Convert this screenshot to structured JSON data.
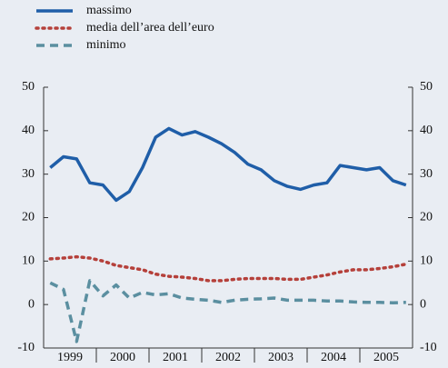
{
  "chart_data": {
    "type": "line",
    "categories": [
      "1999",
      null,
      null,
      null,
      "2000",
      null,
      null,
      null,
      "2001",
      null,
      null,
      null,
      "2002",
      null,
      null,
      null,
      "2003",
      null,
      null,
      null,
      "2004",
      null,
      null,
      null,
      "2005",
      null,
      null,
      null
    ],
    "series": [
      {
        "name": "massimo",
        "color": "#1f5ea8",
        "style": "solid",
        "values": [
          31.5,
          34,
          33.5,
          28,
          27.5,
          24,
          26,
          31.5,
          38.5,
          40.5,
          39,
          39.8,
          38.5,
          37,
          35,
          32.3,
          31,
          28.5,
          27.2,
          26.5,
          27.5,
          28,
          32,
          31.5,
          31,
          31.5,
          28.5,
          27.5
        ]
      },
      {
        "name": "media dell’area dell’euro",
        "color": "#b5403a",
        "style": "dotted",
        "values": [
          10.5,
          10.7,
          11,
          10.7,
          10,
          9,
          8.5,
          8,
          7,
          6.5,
          6.3,
          6,
          5.5,
          5.5,
          5.8,
          6,
          6,
          6,
          5.8,
          5.8,
          6.3,
          6.8,
          7.5,
          8,
          8,
          8.3,
          8.7,
          9.3
        ]
      },
      {
        "name": "minimo",
        "color": "#5b8fa0",
        "style": "dashed",
        "values": [
          5,
          3.5,
          -8.5,
          5.5,
          2,
          4.5,
          1.5,
          2.8,
          2.2,
          2.5,
          1.5,
          1.2,
          1,
          0.5,
          1,
          1.2,
          1.3,
          1.5,
          1,
          1,
          1,
          0.8,
          0.8,
          0.6,
          0.5,
          0.5,
          0.4,
          0.5
        ]
      }
    ],
    "ylim": [
      -10,
      50
    ],
    "yticks": [
      -10,
      0,
      10,
      20,
      30,
      40,
      50
    ],
    "y2lim": [
      -10,
      50
    ],
    "y2ticks": [
      -10,
      0,
      10,
      20,
      30,
      40,
      50
    ],
    "legend": "top-left"
  }
}
